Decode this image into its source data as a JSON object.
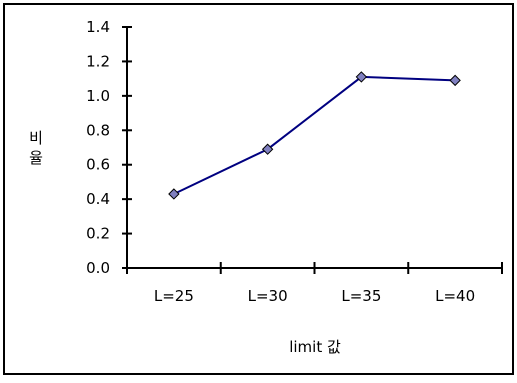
{
  "chart_data": {
    "type": "line",
    "categories": [
      "L=25",
      "L=30",
      "L=35",
      "L=40"
    ],
    "series": [
      {
        "values": [
          0.43,
          0.69,
          1.11,
          1.09
        ]
      }
    ],
    "xlabel": "limit 값",
    "ylabel": "비율",
    "ylim": [
      0,
      1.4
    ],
    "yticks": [
      "0.0",
      "0.2",
      "0.4",
      "0.6",
      "0.8",
      "1.0",
      "1.2",
      "1.4"
    ],
    "grid": false,
    "legend": "none",
    "colors": {
      "line": "#000080",
      "marker": "#8080c0",
      "marker_edge": "#000000"
    }
  }
}
